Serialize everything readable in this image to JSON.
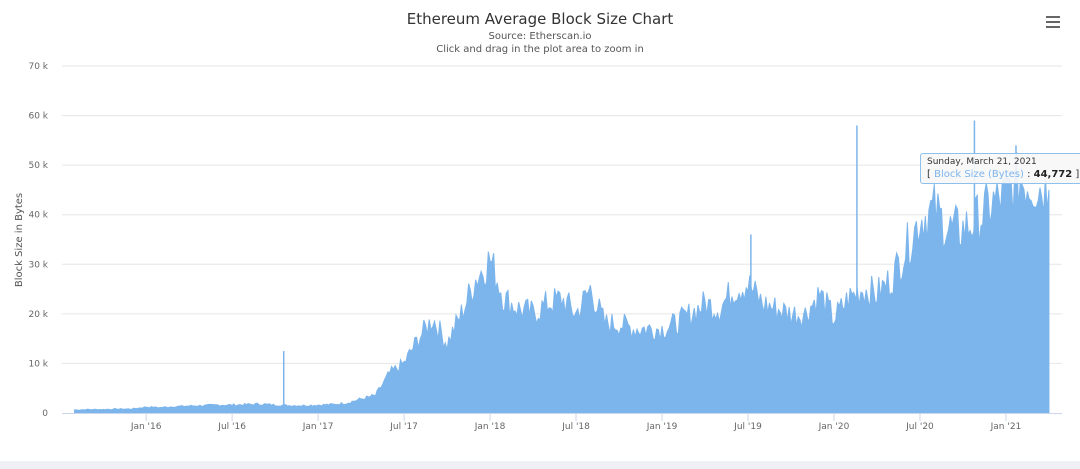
{
  "chart_data": {
    "type": "area",
    "title": "Ethereum Average Block Size Chart",
    "subtitle": "Source: Etherscan.io",
    "hint": "Click and drag in the plot area to zoom in",
    "ylabel": "Block Size in Bytes",
    "xlabel": "",
    "ylim": [
      0,
      70000
    ],
    "yticks": [
      0,
      10000,
      20000,
      30000,
      40000,
      50000,
      60000,
      70000
    ],
    "ytick_labels": [
      "0",
      "10 k",
      "20 k",
      "30 k",
      "40 k",
      "50 k",
      "60 k",
      "70 k"
    ],
    "xtick_labels": [
      "Jan '16",
      "Jul '16",
      "Jan '17",
      "Jul '17",
      "Jan '18",
      "Jul '18",
      "Jan '19",
      "Jul '19",
      "Jan '20",
      "Jul '20",
      "Jan '21"
    ],
    "xtick_months": [
      5,
      11,
      17,
      23,
      29,
      35,
      41,
      47,
      53,
      59,
      65
    ],
    "grid": true,
    "color": "#7cb5ec",
    "series": [
      {
        "name": "Block Size (Bytes)",
        "start": "2015-08",
        "interval": "month",
        "values": [
          600,
          700,
          700,
          800,
          800,
          1200,
          1100,
          1300,
          1400,
          1500,
          1600,
          1600,
          1700,
          1800,
          1600,
          1500,
          1500,
          1600,
          1700,
          2000,
          2800,
          3500,
          8000,
          10000,
          15000,
          19000,
          14000,
          20000,
          27000,
          31000,
          23000,
          21000,
          20000,
          22000,
          23000,
          20000,
          25000,
          18000,
          18000,
          17000,
          17000,
          17000,
          18000,
          20000,
          22000,
          21000,
          25000,
          26000,
          22000,
          21000,
          20000,
          20000,
          24000,
          19000,
          23000,
          25000,
          24000,
          27000,
          33000,
          39000,
          41000,
          37000,
          37000,
          39000,
          42000,
          44000,
          47000,
          46000,
          45000
        ]
      }
    ],
    "spikes": [
      {
        "month": 14.6,
        "value": 12500
      },
      {
        "month": 47.2,
        "value": 36000
      },
      {
        "month": 54.6,
        "value": 58000
      },
      {
        "month": 62.8,
        "value": 59000
      },
      {
        "month": 65.7,
        "value": 54000
      }
    ],
    "tooltip": {
      "date": "Sunday, March 21, 2021",
      "series": "Block Size (Bytes)",
      "value": "44,772"
    }
  },
  "menu_icon": "hamburger-menu-icon"
}
